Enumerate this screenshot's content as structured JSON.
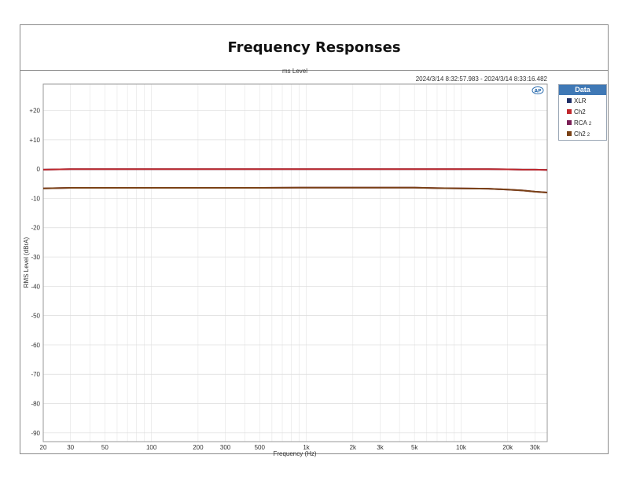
{
  "title": "Frequency Responses",
  "subtitle_partial": "ms  Level",
  "timestamp_range": "2024/3/14 8:32:57.983  -   2024/3/14 8:33:16.482",
  "legend": {
    "header": "Data",
    "items": [
      {
        "name": "XLR",
        "sub": "",
        "color": "#1f2f66"
      },
      {
        "name": "Ch2",
        "sub": "",
        "color": "#c0282d"
      },
      {
        "name": "RCA",
        "sub": "2",
        "color": "#7a1f56"
      },
      {
        "name": "Ch2",
        "sub": "2",
        "color": "#7a4216"
      }
    ]
  },
  "logo_text": "AP",
  "chart_data": {
    "type": "line",
    "xlabel": "Frequency (Hz)",
    "ylabel": "RMS Level (dBrA)",
    "xscale": "log",
    "xlim": [
      20,
      36000
    ],
    "ylim": [
      -93,
      29
    ],
    "grid": true,
    "legend_position": "right",
    "xticks": [
      20,
      30,
      50,
      100,
      200,
      300,
      500,
      1000,
      2000,
      3000,
      5000,
      10000,
      20000,
      30000
    ],
    "xtick_labels": [
      "20",
      "30",
      "50",
      "100",
      "200",
      "300",
      "500",
      "1k",
      "2k",
      "3k",
      "5k",
      "10k",
      "20k",
      "30k"
    ],
    "yticks": [
      20,
      10,
      0,
      -10,
      -20,
      -30,
      -40,
      -50,
      -60,
      -70,
      -80,
      -90
    ],
    "ytick_labels": [
      "+20",
      "+10",
      "0",
      "-10",
      "-20",
      "-30",
      "-40",
      "-50",
      "-60",
      "-70",
      "-80",
      "-90"
    ],
    "series": [
      {
        "name": "XLR",
        "color": "#1f2f66",
        "x": [
          20,
          30,
          50,
          100,
          200,
          500,
          1000,
          2000,
          5000,
          10000,
          15000,
          20000,
          25000,
          30000,
          36000
        ],
        "y": [
          -0.2,
          0,
          0,
          0,
          0,
          0,
          0,
          0,
          0,
          0,
          0,
          -0.1,
          -0.2,
          -0.2,
          -0.3
        ]
      },
      {
        "name": "Ch2",
        "color": "#c0282d",
        "x": [
          20,
          30,
          50,
          100,
          200,
          500,
          1000,
          2000,
          5000,
          10000,
          15000,
          20000,
          25000,
          30000,
          36000
        ],
        "y": [
          -0.2,
          0,
          0,
          0,
          0,
          0,
          0,
          0,
          0,
          0,
          0,
          -0.1,
          -0.2,
          -0.2,
          -0.3
        ]
      },
      {
        "name": "RCA 2",
        "color": "#7a1f56",
        "x": [
          20,
          30,
          50,
          100,
          200,
          500,
          1000,
          2000,
          5000,
          7000,
          10000,
          15000,
          20000,
          25000,
          30000,
          36000
        ],
        "y": [
          -6.6,
          -6.4,
          -6.4,
          -6.4,
          -6.4,
          -6.4,
          -6.3,
          -6.3,
          -6.3,
          -6.5,
          -6.6,
          -6.7,
          -7.0,
          -7.3,
          -7.7,
          -8.0
        ]
      },
      {
        "name": "Ch2 2",
        "color": "#7a4216",
        "x": [
          20,
          30,
          50,
          100,
          200,
          500,
          1000,
          2000,
          5000,
          7000,
          10000,
          15000,
          20000,
          25000,
          30000,
          36000
        ],
        "y": [
          -6.6,
          -6.4,
          -6.4,
          -6.4,
          -6.4,
          -6.4,
          -6.3,
          -6.3,
          -6.3,
          -6.5,
          -6.6,
          -6.7,
          -7.0,
          -7.3,
          -7.7,
          -8.0
        ]
      }
    ]
  }
}
